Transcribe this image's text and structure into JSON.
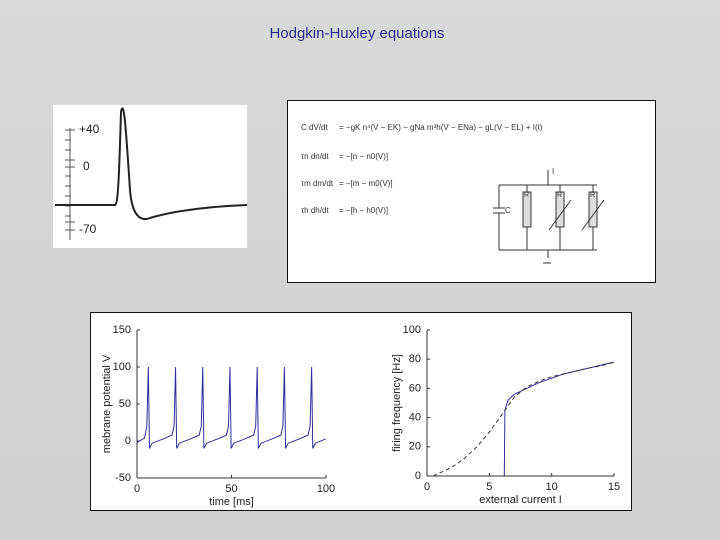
{
  "title": "Hodgkin-Huxley equations",
  "spike_figure": {
    "labels": [
      "+40",
      "0",
      "-70"
    ]
  },
  "equations": [
    {
      "lhs": "C dV/dt",
      "rhs": "= −gK n⁴(V − EK) − gNa m³h(V − ENa) − gL(V − EL) + I(t)"
    },
    {
      "lhs": "τn dn/dt",
      "rhs": "= −[n − n0(V)]"
    },
    {
      "lhs": "τm dm/dt",
      "rhs": "= −[m − m0(V)]"
    },
    {
      "lhs": "τh dh/dt",
      "rhs": "= −[h − h0(V)]"
    }
  ],
  "circuit": {
    "labels": [
      "I",
      "C",
      "R",
      "R",
      "R"
    ]
  },
  "chart_data": [
    {
      "type": "line",
      "xlabel": "time [ms]",
      "ylabel": "mebrane potential V",
      "xlim": [
        0,
        100
      ],
      "ylim": [
        -50,
        150
      ],
      "xticks": [
        0,
        50,
        100
      ],
      "yticks": [
        -50,
        0,
        50,
        100,
        150
      ],
      "series": [
        {
          "color": "#2e2e9e",
          "dashed": false,
          "x": [
            0,
            4,
            5.2,
            6,
            6.6,
            8,
            14,
            18.5,
            19.6,
            20.4,
            21,
            22.4,
            28.4,
            32.9,
            34,
            34.8,
            35.4,
            36.8,
            42.8,
            47.3,
            48.4,
            49.2,
            49.8,
            51.2,
            57.2,
            61.7,
            62.8,
            63.6,
            64.2,
            65.6,
            71.6,
            76.1,
            77.2,
            78,
            78.6,
            80,
            86,
            90.5,
            91.6,
            92.4,
            93,
            94.4,
            100
          ],
          "values": [
            -2,
            4,
            20,
            100,
            -10,
            -3,
            3,
            8,
            20,
            100,
            -10,
            -3,
            3,
            8,
            20,
            100,
            -10,
            -3,
            3,
            8,
            20,
            100,
            -10,
            -3,
            3,
            8,
            20,
            100,
            -10,
            -3,
            3,
            8,
            20,
            100,
            -10,
            -3,
            3,
            8,
            20,
            100,
            -10,
            -3,
            3
          ]
        }
      ]
    },
    {
      "type": "line",
      "xlabel": "external current I",
      "ylabel": "firing frequency [Hz]",
      "xlim": [
        0,
        15
      ],
      "ylim": [
        0,
        100
      ],
      "xticks": [
        0,
        5,
        10,
        15
      ],
      "yticks": [
        0,
        20,
        40,
        60,
        80,
        100
      ],
      "series": [
        {
          "color": "#2e2e9e",
          "dashed": false,
          "x": [
            6.2,
            6.25,
            6.5,
            7,
            8,
            9,
            10,
            11,
            12,
            13,
            14,
            15
          ],
          "values": [
            0,
            45,
            52,
            56,
            60,
            64,
            67,
            70,
            72,
            74,
            76,
            78
          ]
        },
        {
          "color": "#333333",
          "dashed": true,
          "x": [
            0.5,
            2,
            3,
            4,
            5,
            6,
            6.5,
            7,
            8,
            9,
            10,
            11,
            12,
            13,
            14,
            15
          ],
          "values": [
            0,
            6,
            12,
            20,
            30,
            42,
            48,
            54,
            61,
            65,
            68,
            70,
            72,
            74,
            75.5,
            78
          ]
        }
      ]
    }
  ]
}
